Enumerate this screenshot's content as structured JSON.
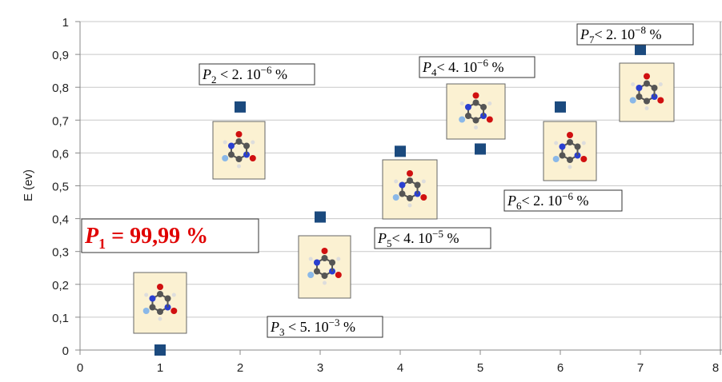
{
  "chart_data": {
    "type": "scatter",
    "y_label": "E (ev)",
    "x": [
      1,
      2,
      3,
      4,
      5,
      6,
      7
    ],
    "values": [
      0,
      0.74,
      0.405,
      0.605,
      0.612,
      0.74,
      0.915
    ],
    "color": "#1b4a7e",
    "xlim": [
      0,
      8
    ],
    "xticks": [
      0,
      1,
      2,
      3,
      4,
      5,
      6,
      7,
      8
    ],
    "ylim": [
      0,
      1
    ],
    "yticks": [
      0,
      {
        "value": 0.1,
        "label": "0,1"
      },
      {
        "value": 0.2,
        "label": "0,2"
      },
      {
        "value": 0.3,
        "label": "0,3"
      },
      {
        "value": 0.4,
        "label": "0,4"
      },
      {
        "value": 0.5,
        "label": "0,5"
      },
      {
        "value": 0.6,
        "label": "0,6"
      },
      {
        "value": 0.7,
        "label": "0,7"
      },
      {
        "value": 0.8,
        "label": "0,8"
      },
      {
        "value": 0.9,
        "label": "0,9"
      },
      1
    ],
    "grid": true,
    "annotations": [
      {
        "p": "P",
        "sub": "1",
        "rest": " = 99,99 %"
      },
      {
        "p": "P",
        "sub": "2",
        "rest": " < 2. 10",
        "sup": "−6",
        "end": " %"
      },
      {
        "p": "P",
        "sub": "3",
        "rest": " < 5. 10",
        "sup": "−3",
        "end": " %"
      },
      {
        "p": "P",
        "sub": "4",
        "rest": "< 4. 10",
        "sup": "−6",
        "end": " %"
      },
      {
        "p": "P",
        "sub": "5",
        "rest": "< 4. 10",
        "sup": "−5",
        "end": " %"
      },
      {
        "p": "P",
        "sub": "6",
        "rest": "< 2. 10",
        "sup": "−6",
        "end": " %"
      },
      {
        "p": "P",
        "sub": "7",
        "rest": "< 2. 10",
        "sup": "−8",
        "end": " %"
      }
    ]
  }
}
